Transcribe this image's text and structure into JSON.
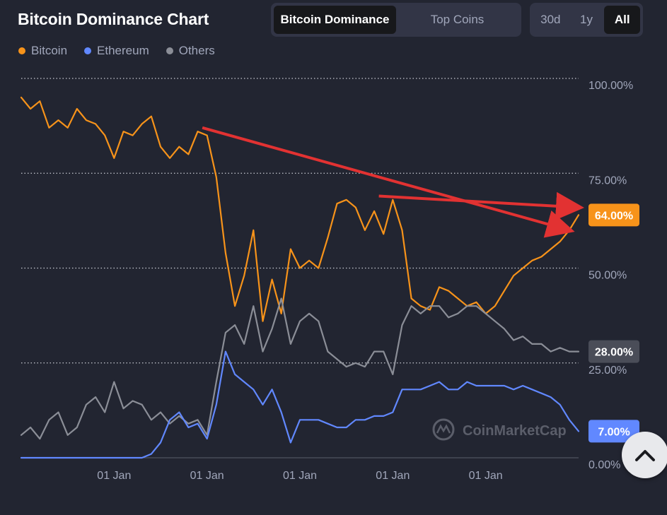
{
  "header": {
    "title": "Bitcoin Dominance Chart",
    "view_tabs": [
      {
        "label": "Bitcoin Dominance",
        "active": true
      },
      {
        "label": "Top Coins",
        "active": false
      }
    ],
    "range_tabs": [
      {
        "label": "30d",
        "active": false
      },
      {
        "label": "1y",
        "active": false
      },
      {
        "label": "All",
        "active": true
      }
    ]
  },
  "legend": [
    {
      "label": "Bitcoin",
      "color": "#f7931a"
    },
    {
      "label": "Ethereum",
      "color": "#6188ff"
    },
    {
      "label": "Others",
      "color": "#8b8e97"
    }
  ],
  "watermark": "CoinMarketCap",
  "scroll_top_icon": "chevron-up-icon",
  "chart_data": {
    "type": "line",
    "title": "Bitcoin Dominance Chart",
    "ylim": [
      0,
      100
    ],
    "y_ticks": [
      "100.00%",
      "75.00%",
      "50.00%",
      "25.00%",
      "0.00%"
    ],
    "y_tick_values": [
      100,
      75,
      50,
      25,
      0
    ],
    "x_tick_labels": [
      "01 Jan",
      "01 Jan",
      "01 Jan",
      "01 Jan",
      "01 Jan"
    ],
    "x_tick_positions": [
      10,
      20,
      30,
      40,
      50
    ],
    "x_range": [
      0,
      60
    ],
    "grid": true,
    "current_values": [
      {
        "series": "Bitcoin",
        "label": "64.00%",
        "value": 64,
        "color": "#f7931a"
      },
      {
        "series": "Others",
        "label": "28.00%",
        "value": 28,
        "color": "#4a4d58"
      },
      {
        "series": "Ethereum",
        "label": "7.00%",
        "value": 7,
        "color": "#6188ff"
      }
    ],
    "series": [
      {
        "name": "Bitcoin",
        "color": "#f7931a",
        "x": [
          0,
          1,
          2,
          3,
          4,
          5,
          6,
          7,
          8,
          9,
          10,
          11,
          12,
          13,
          14,
          15,
          16,
          17,
          18,
          19,
          20,
          21,
          22,
          23,
          24,
          25,
          26,
          27,
          28,
          29,
          30,
          31,
          32,
          33,
          34,
          35,
          36,
          37,
          38,
          39,
          40,
          41,
          42,
          43,
          44,
          45,
          46,
          47,
          48,
          49,
          50,
          51,
          52,
          53,
          54,
          55,
          56,
          57,
          58,
          59,
          60
        ],
        "values": [
          95,
          92,
          94,
          87,
          89,
          87,
          92,
          89,
          88,
          85,
          79,
          86,
          85,
          88,
          90,
          82,
          79,
          82,
          80,
          86,
          85,
          74,
          54,
          40,
          48,
          60,
          36,
          47,
          38,
          55,
          50,
          52,
          50,
          58,
          67,
          68,
          66,
          60,
          65,
          59,
          68,
          60,
          42,
          40,
          39,
          45,
          44,
          42,
          40,
          41,
          38,
          40,
          44,
          48,
          50,
          52,
          53,
          55,
          57,
          60,
          64
        ],
        "annotations": [
          {
            "from": [
              19.5,
              87
            ],
            "to": [
              59,
              60
            ],
            "color": "#e23232"
          },
          {
            "from": [
              38.5,
              69
            ],
            "to": [
              60,
              66
            ],
            "color": "#e23232"
          }
        ]
      },
      {
        "name": "Others",
        "color": "#8b8e97",
        "x": [
          0,
          1,
          2,
          3,
          4,
          5,
          6,
          7,
          8,
          9,
          10,
          11,
          12,
          13,
          14,
          15,
          16,
          17,
          18,
          19,
          20,
          21,
          22,
          23,
          24,
          25,
          26,
          27,
          28,
          29,
          30,
          31,
          32,
          33,
          34,
          35,
          36,
          37,
          38,
          39,
          40,
          41,
          42,
          43,
          44,
          45,
          46,
          47,
          48,
          49,
          50,
          51,
          52,
          53,
          54,
          55,
          56,
          57,
          58,
          59,
          60
        ],
        "values": [
          6,
          8,
          5,
          10,
          12,
          6,
          8,
          14,
          16,
          12,
          20,
          13,
          15,
          14,
          10,
          12,
          9,
          11,
          9,
          10,
          6,
          20,
          33,
          35,
          30,
          40,
          28,
          34,
          42,
          30,
          36,
          38,
          36,
          28,
          26,
          24,
          25,
          24,
          28,
          28,
          22,
          35,
          40,
          38,
          40,
          40,
          37,
          38,
          40,
          40,
          38,
          36,
          34,
          31,
          32,
          30,
          30,
          28,
          29,
          28,
          28
        ]
      },
      {
        "name": "Ethereum",
        "color": "#6188ff",
        "x": [
          0,
          1,
          2,
          3,
          4,
          5,
          6,
          7,
          8,
          9,
          10,
          11,
          12,
          13,
          14,
          15,
          16,
          17,
          18,
          19,
          20,
          21,
          22,
          23,
          24,
          25,
          26,
          27,
          28,
          29,
          30,
          31,
          32,
          33,
          34,
          35,
          36,
          37,
          38,
          39,
          40,
          41,
          42,
          43,
          44,
          45,
          46,
          47,
          48,
          49,
          50,
          51,
          52,
          53,
          54,
          55,
          56,
          57,
          58,
          59,
          60
        ],
        "values": [
          0,
          0,
          0,
          0,
          0,
          0,
          0,
          0,
          0,
          0,
          0,
          0,
          0,
          0,
          1,
          4,
          10,
          12,
          8,
          9,
          5,
          14,
          28,
          22,
          20,
          18,
          14,
          18,
          12,
          4,
          10,
          10,
          10,
          9,
          8,
          8,
          10,
          10,
          11,
          11,
          12,
          18,
          18,
          18,
          19,
          20,
          18,
          18,
          20,
          19,
          19,
          19,
          19,
          18,
          19,
          18,
          17,
          16,
          14,
          10,
          7
        ]
      }
    ]
  }
}
